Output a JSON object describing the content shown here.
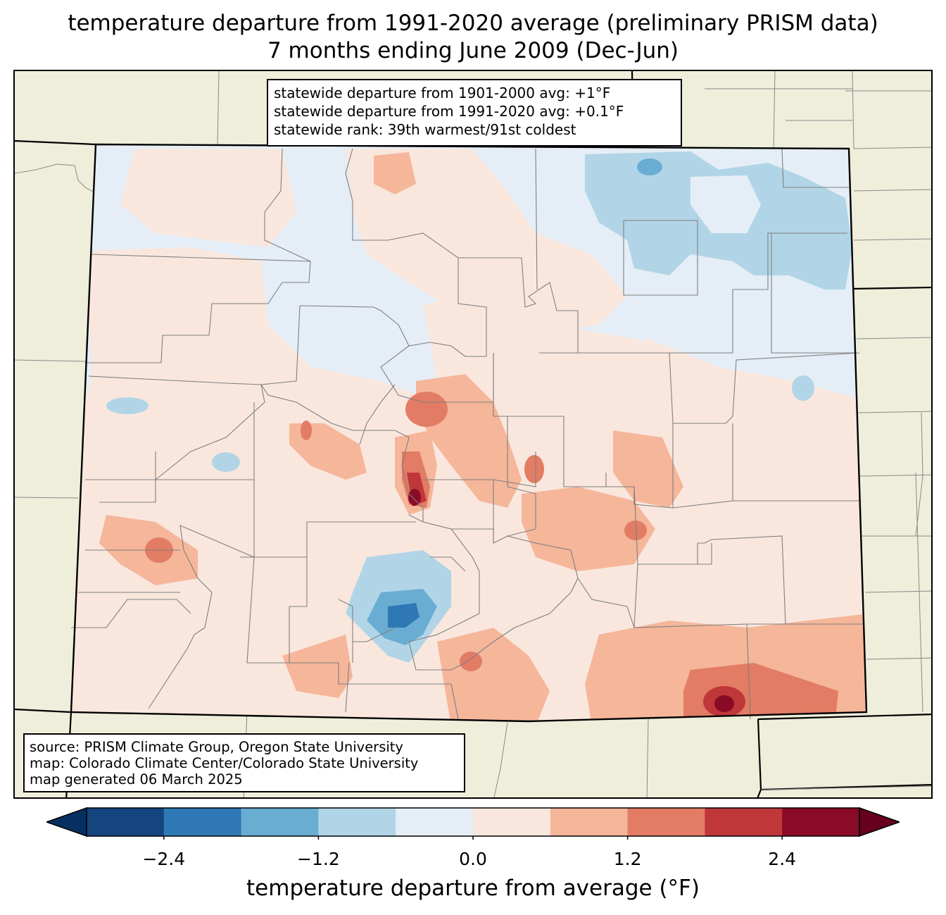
{
  "title": {
    "line1": "temperature departure from 1991-2020 average (preliminary PRISM data)",
    "line2": "7 months ending June 2009 (Dec-Jun)"
  },
  "stats": {
    "line1": "statewide departure from 1901-2000 avg: +1°F",
    "line2": "statewide departure from 1991-2020 avg: +0.1°F",
    "line3": "statewide rank: 39th warmest/91st coldest"
  },
  "source": {
    "line1": "source: PRISM Climate Group, Oregon State University",
    "line2": "map: Colorado Climate Center/Colorado State University",
    "line3": "map generated 06 March 2025"
  },
  "colorbar": {
    "label": "temperature departure from average (°F)",
    "ticks": [
      "−2.4",
      "−1.2",
      "0.0",
      "1.2",
      "2.4"
    ],
    "tick_values": [
      -2.4,
      -1.2,
      0.0,
      1.2,
      2.4
    ],
    "range": [
      -3.0,
      3.0
    ],
    "step": 0.6,
    "extend": "both",
    "colors": [
      "#0f4480",
      "#15457f",
      "#2e79b5",
      "#6aadd3",
      "#b1d5e7",
      "#e5eef6",
      "#f9e7de",
      "#f5b69a",
      "#e27c65",
      "#c0373a",
      "#8a0b25",
      "#67001f"
    ]
  },
  "colors": {
    "land": "#efeedb",
    "near_zero_cool": "#e5eef6",
    "near_zero_warm": "#f9e7de",
    "warm_1": "#f5b69a",
    "warm_2": "#e27c65",
    "warm_3": "#c0373a",
    "warm_4": "#8a0b25",
    "cool_1": "#b1d5e7",
    "cool_2": "#6aadd3",
    "cool_3": "#2e79b5"
  }
}
